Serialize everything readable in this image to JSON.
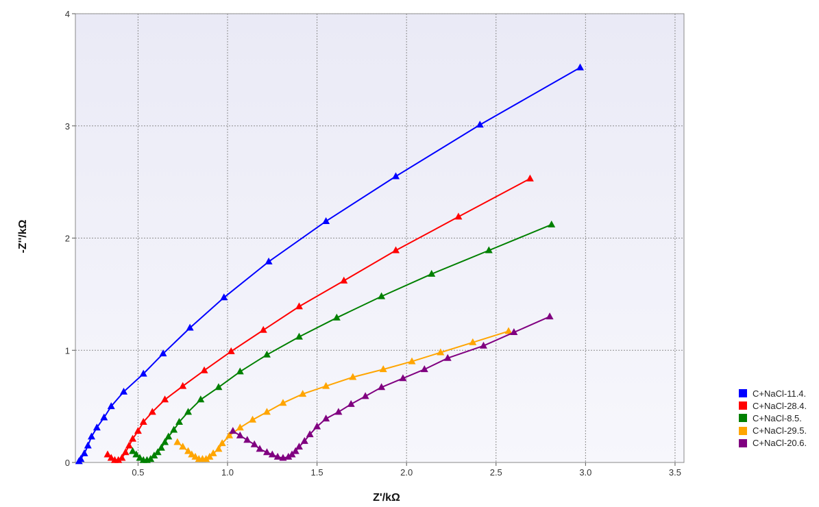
{
  "chart_data": {
    "type": "scatter",
    "xlabel": "Z'/kΩ",
    "ylabel": "-Z''/kΩ",
    "xlim": [
      0.15,
      3.55
    ],
    "ylim": [
      0,
      4
    ],
    "xticks": [
      "0.5",
      "1.0",
      "1.5",
      "2.0",
      "2.5",
      "3.0",
      "3.5"
    ],
    "yticks": [
      "0",
      "1",
      "2",
      "3",
      "4"
    ],
    "grid": true,
    "legend_position": "right",
    "series": [
      {
        "name": "C+NaCl-11.4.",
        "color": "#0000ff",
        "points": [
          [
            0.17,
            0.01
          ],
          [
            0.18,
            0.03
          ],
          [
            0.2,
            0.08
          ],
          [
            0.22,
            0.15
          ],
          [
            0.24,
            0.23
          ],
          [
            0.27,
            0.31
          ],
          [
            0.31,
            0.4
          ],
          [
            0.35,
            0.5
          ],
          [
            0.42,
            0.63
          ],
          [
            0.53,
            0.79
          ],
          [
            0.64,
            0.97
          ],
          [
            0.79,
            1.2
          ],
          [
            0.98,
            1.47
          ],
          [
            1.23,
            1.79
          ],
          [
            1.55,
            2.15
          ],
          [
            1.94,
            2.55
          ],
          [
            2.41,
            3.01
          ],
          [
            2.97,
            3.52
          ]
        ]
      },
      {
        "name": "C+NaCl-28.4.",
        "color": "#ff0000",
        "points": [
          [
            0.33,
            0.07
          ],
          [
            0.35,
            0.04
          ],
          [
            0.37,
            0.02
          ],
          [
            0.39,
            0.02
          ],
          [
            0.41,
            0.04
          ],
          [
            0.43,
            0.09
          ],
          [
            0.45,
            0.15
          ],
          [
            0.47,
            0.21
          ],
          [
            0.5,
            0.28
          ],
          [
            0.53,
            0.36
          ],
          [
            0.58,
            0.45
          ],
          [
            0.65,
            0.56
          ],
          [
            0.75,
            0.68
          ],
          [
            0.87,
            0.82
          ],
          [
            1.02,
            0.99
          ],
          [
            1.2,
            1.18
          ],
          [
            1.4,
            1.39
          ],
          [
            1.65,
            1.62
          ],
          [
            1.94,
            1.89
          ],
          [
            2.29,
            2.19
          ],
          [
            2.69,
            2.53
          ]
        ]
      },
      {
        "name": "C+NaCl-8.5.",
        "color": "#008000",
        "points": [
          [
            0.47,
            0.1
          ],
          [
            0.49,
            0.07
          ],
          [
            0.51,
            0.04
          ],
          [
            0.53,
            0.02
          ],
          [
            0.55,
            0.02
          ],
          [
            0.57,
            0.03
          ],
          [
            0.59,
            0.06
          ],
          [
            0.61,
            0.09
          ],
          [
            0.63,
            0.13
          ],
          [
            0.65,
            0.18
          ],
          [
            0.67,
            0.23
          ],
          [
            0.7,
            0.29
          ],
          [
            0.73,
            0.36
          ],
          [
            0.78,
            0.45
          ],
          [
            0.85,
            0.56
          ],
          [
            0.95,
            0.67
          ],
          [
            1.07,
            0.81
          ],
          [
            1.22,
            0.96
          ],
          [
            1.4,
            1.12
          ],
          [
            1.61,
            1.29
          ],
          [
            1.86,
            1.48
          ],
          [
            2.14,
            1.68
          ],
          [
            2.46,
            1.89
          ],
          [
            2.81,
            2.12
          ]
        ]
      },
      {
        "name": "C+NaCl-29.5.",
        "color": "#ffa500",
        "points": [
          [
            0.72,
            0.18
          ],
          [
            0.75,
            0.14
          ],
          [
            0.78,
            0.1
          ],
          [
            0.8,
            0.07
          ],
          [
            0.82,
            0.05
          ],
          [
            0.84,
            0.03
          ],
          [
            0.86,
            0.03
          ],
          [
            0.88,
            0.03
          ],
          [
            0.9,
            0.05
          ],
          [
            0.92,
            0.08
          ],
          [
            0.95,
            0.12
          ],
          [
            0.97,
            0.17
          ],
          [
            1.01,
            0.24
          ],
          [
            1.07,
            0.31
          ],
          [
            1.14,
            0.38
          ],
          [
            1.22,
            0.45
          ],
          [
            1.31,
            0.53
          ],
          [
            1.42,
            0.61
          ],
          [
            1.55,
            0.68
          ],
          [
            1.7,
            0.76
          ],
          [
            1.87,
            0.83
          ],
          [
            2.03,
            0.9
          ],
          [
            2.19,
            0.98
          ],
          [
            2.37,
            1.07
          ],
          [
            2.57,
            1.17
          ]
        ]
      },
      {
        "name": "C+NaCl-20.6.",
        "color": "#800080",
        "points": [
          [
            1.03,
            0.28
          ],
          [
            1.07,
            0.24
          ],
          [
            1.11,
            0.2
          ],
          [
            1.15,
            0.16
          ],
          [
            1.18,
            0.12
          ],
          [
            1.22,
            0.09
          ],
          [
            1.25,
            0.07
          ],
          [
            1.28,
            0.05
          ],
          [
            1.31,
            0.04
          ],
          [
            1.34,
            0.05
          ],
          [
            1.36,
            0.07
          ],
          [
            1.38,
            0.1
          ],
          [
            1.4,
            0.14
          ],
          [
            1.43,
            0.19
          ],
          [
            1.46,
            0.25
          ],
          [
            1.5,
            0.32
          ],
          [
            1.55,
            0.39
          ],
          [
            1.62,
            0.45
          ],
          [
            1.69,
            0.52
          ],
          [
            1.77,
            0.59
          ],
          [
            1.86,
            0.67
          ],
          [
            1.98,
            0.75
          ],
          [
            2.1,
            0.83
          ],
          [
            2.23,
            0.93
          ],
          [
            2.43,
            1.04
          ],
          [
            2.6,
            1.16
          ],
          [
            2.8,
            1.3
          ]
        ]
      }
    ]
  }
}
